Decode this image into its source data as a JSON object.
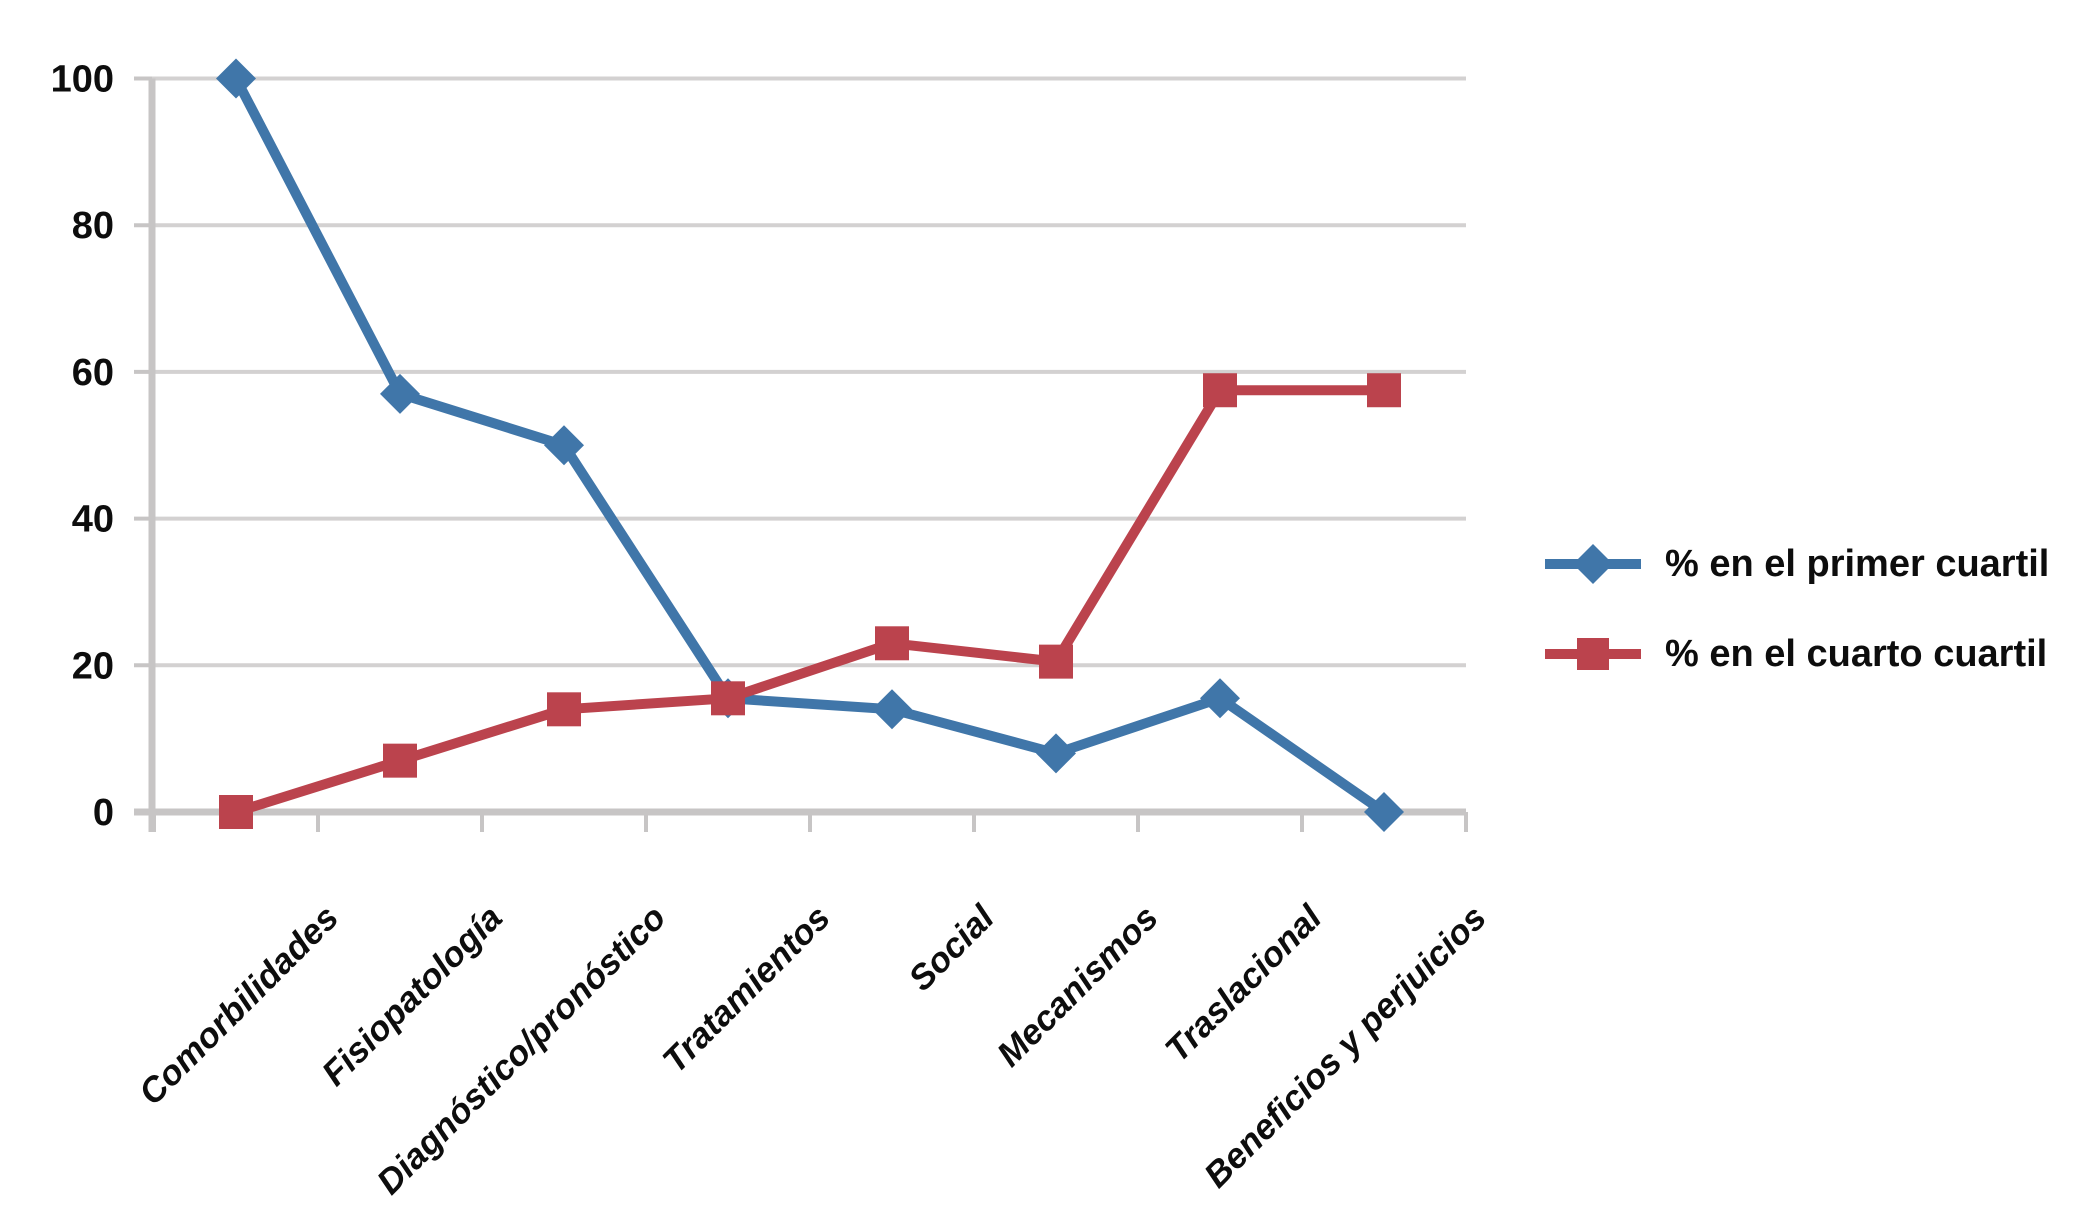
{
  "chart_data": {
    "type": "line",
    "title": "",
    "xlabel": "",
    "ylabel": "",
    "categories": [
      "Comorbilidades",
      "Fisiopatología",
      "Diagnóstico/pronóstico",
      "Tratamientos",
      "Social",
      "Mecanismos",
      "Traslacional",
      "Beneficios y perjuicios"
    ],
    "series": [
      {
        "name": "% en el primer cuartil",
        "marker": "diamond",
        "color": "#4076A9",
        "values": [
          100,
          57,
          50,
          15.5,
          14,
          8,
          15.5,
          0
        ]
      },
      {
        "name": "% en el cuarto cuartil",
        "marker": "square",
        "color": "#BB434D",
        "values": [
          0,
          7,
          14,
          15.5,
          23,
          20.5,
          57.5,
          57.5
        ]
      }
    ],
    "yticks": [
      0,
      20,
      40,
      60,
      80,
      100
    ],
    "ylim": [
      0,
      100
    ],
    "grid": true,
    "legend_position": "right"
  },
  "colors": {
    "gridline": "#D3D1D1",
    "axis": "#C7C5C5",
    "text": "#0D0D0D",
    "background": "#FFFFFF"
  }
}
